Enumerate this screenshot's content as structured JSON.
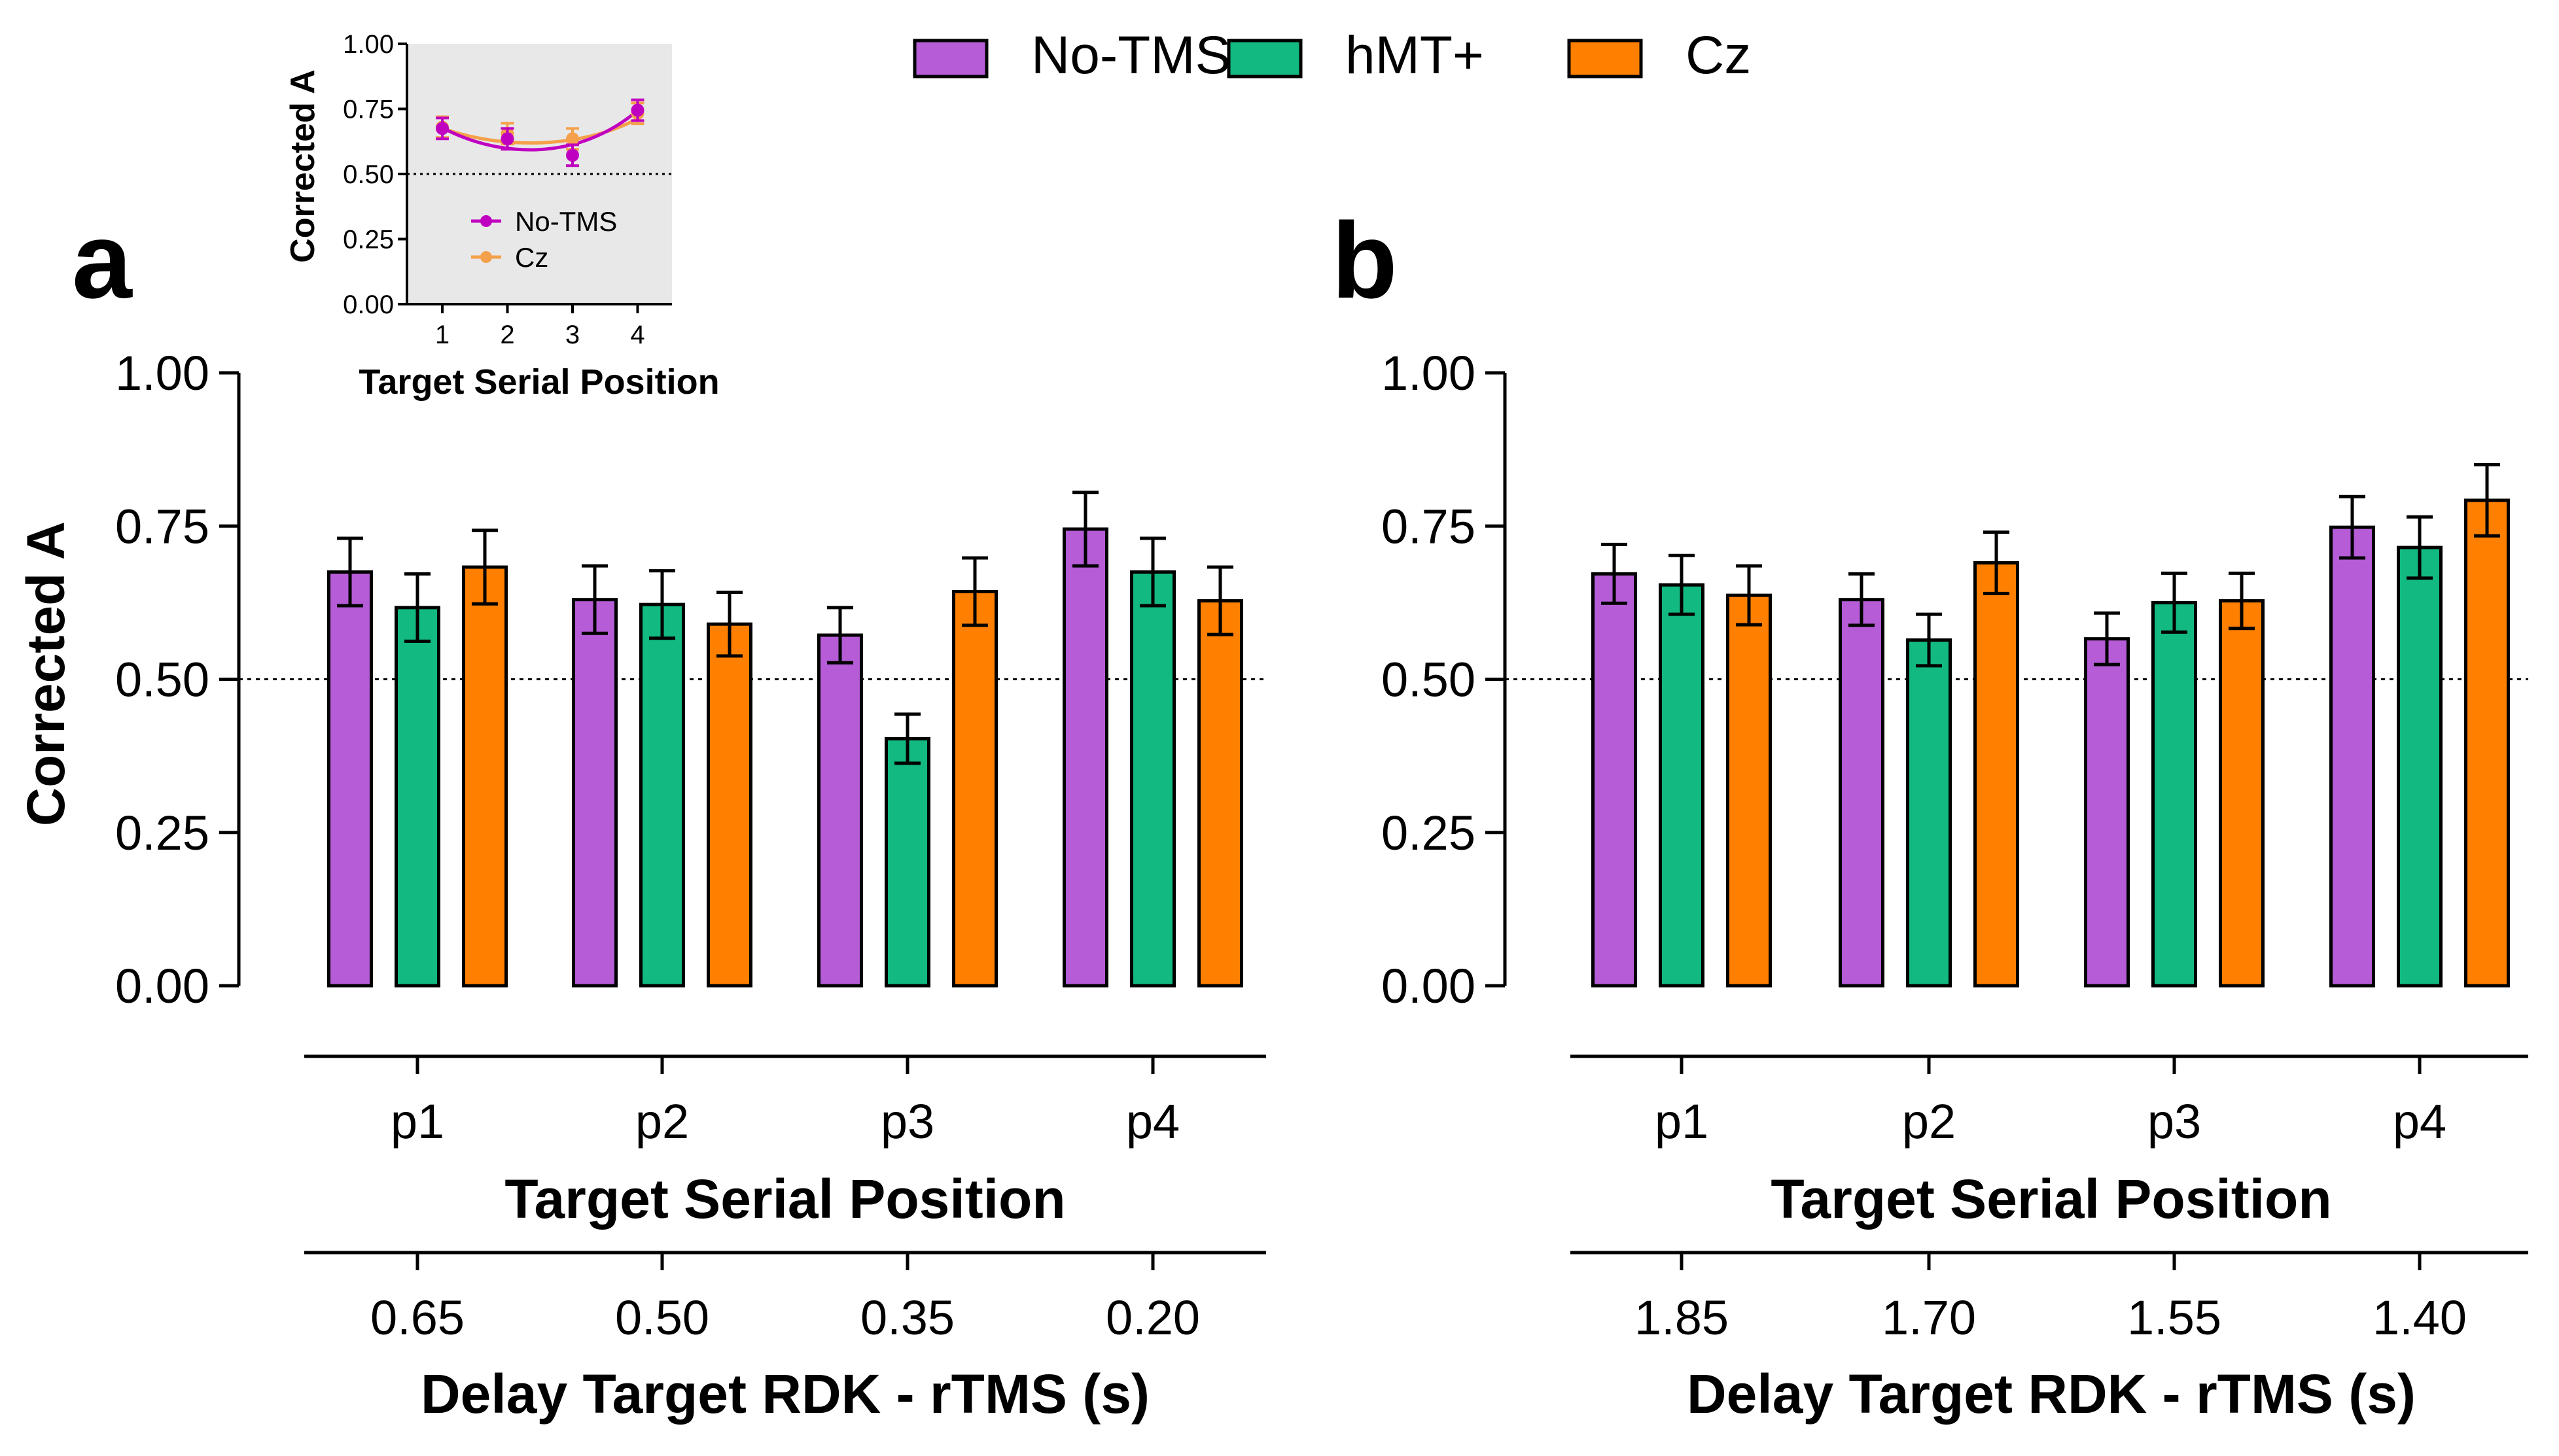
{
  "colors": {
    "no_tms": "#b55cd6",
    "hmt": "#12b981",
    "cz": "#ff8000",
    "inset_no_tms": "#c000c0",
    "inset_cz": "#f5a04a",
    "inset_bg": "#e8e8e8"
  },
  "legend": {
    "items": [
      {
        "label": "No-TMS",
        "color": "#b55cd6"
      },
      {
        "label": "hMT+",
        "color": "#12b981"
      },
      {
        "label": "Cz",
        "color": "#ff8000"
      }
    ]
  },
  "chart_data": [
    {
      "panel": "a",
      "type": "bar",
      "ylabel": "Corrected A",
      "ylim": [
        0,
        1
      ],
      "yticks": [
        "0.00",
        "0.25",
        "0.50",
        "0.75",
        "1.00"
      ],
      "reference_line": 0.5,
      "categories": [
        "p1",
        "p2",
        "p3",
        "p4"
      ],
      "xlabel": "Target Serial Position",
      "secondary_categories": [
        "0.65",
        "0.50",
        "0.35",
        "0.20"
      ],
      "secondary_xlabel": "Delay Target RDK - rTMS  (s)",
      "series": [
        {
          "name": "No-TMS",
          "values": [
            0.675,
            0.63,
            0.572,
            0.745
          ],
          "errors": [
            0.055,
            0.055,
            0.045,
            0.06
          ]
        },
        {
          "name": "hMT+",
          "values": [
            0.617,
            0.622,
            0.403,
            0.675
          ],
          "errors": [
            0.055,
            0.055,
            0.04,
            0.055
          ]
        },
        {
          "name": "Cz",
          "values": [
            0.683,
            0.59,
            0.643,
            0.628
          ],
          "errors": [
            0.06,
            0.052,
            0.055,
            0.055
          ]
        }
      ]
    },
    {
      "panel": "b",
      "type": "bar",
      "ylabel": "",
      "ylim": [
        0,
        1
      ],
      "yticks": [
        "0.00",
        "0.25",
        "0.50",
        "0.75",
        "1.00"
      ],
      "reference_line": 0.5,
      "categories": [
        "p1",
        "p2",
        "p3",
        "p4"
      ],
      "xlabel": "Target Serial Position",
      "secondary_categories": [
        "1.85",
        "1.70",
        "1.55",
        "1.40"
      ],
      "secondary_xlabel": "Delay Target RDK - rTMS  (s)",
      "series": [
        {
          "name": "No-TMS",
          "values": [
            0.672,
            0.63,
            0.566,
            0.748
          ],
          "errors": [
            0.048,
            0.042,
            0.042,
            0.05
          ]
        },
        {
          "name": "hMT+",
          "values": [
            0.654,
            0.564,
            0.625,
            0.715
          ],
          "errors": [
            0.048,
            0.042,
            0.048,
            0.05
          ]
        },
        {
          "name": "Cz",
          "values": [
            0.637,
            0.69,
            0.628,
            0.792
          ],
          "errors": [
            0.048,
            0.05,
            0.045,
            0.058
          ]
        }
      ]
    },
    {
      "panel": "inset",
      "type": "line",
      "ylabel": "Corrected A",
      "xlabel": "Target Serial Position",
      "ylim": [
        0,
        1
      ],
      "yticks": [
        "0.00",
        "0.25",
        "0.50",
        "0.75",
        "1.00"
      ],
      "xticks": [
        "1",
        "2",
        "3",
        "4"
      ],
      "x": [
        1,
        2,
        3,
        4
      ],
      "reference_line": 0.5,
      "series": [
        {
          "name": "No-TMS",
          "values": [
            0.675,
            0.635,
            0.572,
            0.745
          ],
          "errors": [
            0.04,
            0.04,
            0.04,
            0.04
          ],
          "fit": [
            0.678,
            0.608,
            0.602,
            0.744
          ]
        },
        {
          "name": "Cz",
          "values": [
            0.68,
            0.655,
            0.635,
            0.733
          ],
          "errors": [
            0.04,
            0.04,
            0.04,
            0.04
          ],
          "fit": [
            0.676,
            0.645,
            0.645,
            0.712
          ]
        }
      ]
    }
  ],
  "labels": {
    "panel_a": "a",
    "panel_b": "b"
  }
}
